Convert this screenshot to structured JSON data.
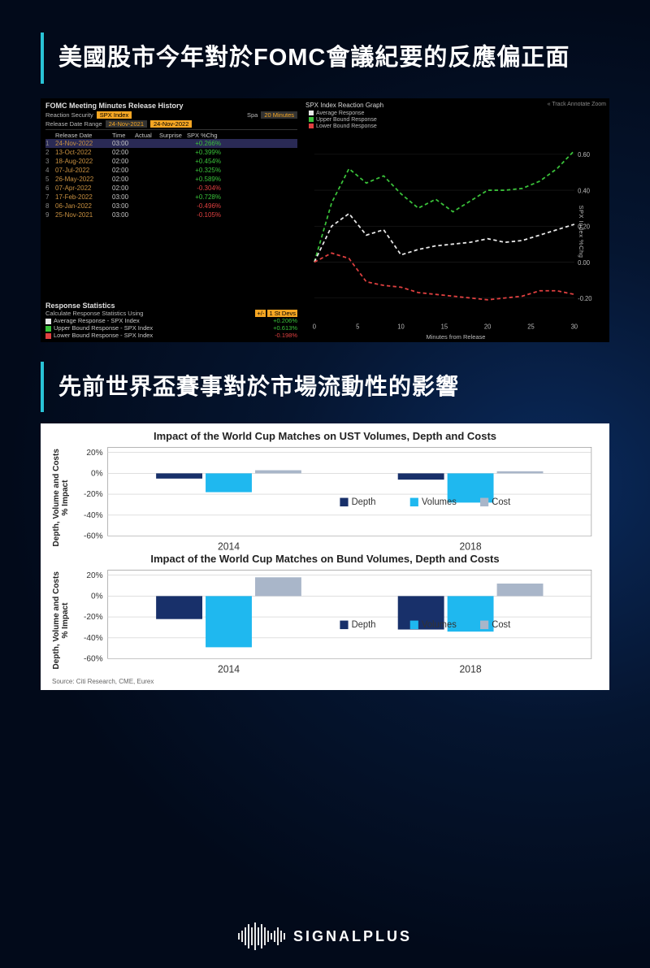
{
  "heading1": "美國股市今年對於FOMC會議紀要的反應偏正面",
  "heading2": "先前世界盃賽事對於市場流動性的影響",
  "brand": "SIGNALPLUS",
  "terminal": {
    "title": "FOMC Meeting Minutes Release History",
    "reaction_security_label": "Reaction Security",
    "reaction_security_value": "SPX Index",
    "spap_label": "Spa",
    "spap_value": "20 Minutes",
    "release_range_label": "Release Date Range",
    "range_from": "24-Nov-2021",
    "range_to": "24-Nov-2022",
    "head": [
      "",
      "Release Date",
      "Time",
      "Actual",
      "Surprise",
      "SPX %Chg"
    ],
    "rows": [
      {
        "n": "1",
        "date": "24-Nov-2022",
        "time": "03:00",
        "chg": "+0.266%",
        "dir": "pos",
        "hl": true
      },
      {
        "n": "2",
        "date": "13-Oct-2022",
        "time": "02:00",
        "chg": "+0.399%",
        "dir": "pos"
      },
      {
        "n": "3",
        "date": "18-Aug-2022",
        "time": "02:00",
        "chg": "+0.454%",
        "dir": "pos"
      },
      {
        "n": "4",
        "date": "07-Jul-2022",
        "time": "02:00",
        "chg": "+0.325%",
        "dir": "pos"
      },
      {
        "n": "5",
        "date": "26-May-2022",
        "time": "02:00",
        "chg": "+0.589%",
        "dir": "pos"
      },
      {
        "n": "6",
        "date": "07-Apr-2022",
        "time": "02:00",
        "chg": "-0.304%",
        "dir": "neg"
      },
      {
        "n": "7",
        "date": "17-Feb-2022",
        "time": "03:00",
        "chg": "+0.728%",
        "dir": "pos"
      },
      {
        "n": "8",
        "date": "06-Jan-2022",
        "time": "03:00",
        "chg": "-0.496%",
        "dir": "neg"
      },
      {
        "n": "9",
        "date": "25-Nov-2021",
        "time": "03:00",
        "chg": "-0.105%",
        "dir": "neg"
      }
    ],
    "stats_title": "Response Statistics",
    "stats_sub_label": "Calculate Response Statistics Using",
    "stats_sub_btn": "+/-",
    "stats_sub_val": "1 St Devs",
    "stats_rows": [
      {
        "color": "#e8e8e8",
        "label": "Average Response - SPX Index",
        "val": "+0.206%",
        "dir": "pos"
      },
      {
        "color": "#3ac23a",
        "label": "Upper Bound Response - SPX Index",
        "val": "+0.613%",
        "dir": "pos"
      },
      {
        "color": "#e04040",
        "label": "Lower Bound Response - SPX Index",
        "val": "-0.198%",
        "dir": "neg"
      }
    ],
    "graph": {
      "title": "SPX Index Reaction Graph",
      "tools": "« Track   Annotate   Zoom",
      "legend": [
        {
          "color": "#e8e8e8",
          "label": "Average Response"
        },
        {
          "color": "#3ac23a",
          "label": "Upper Bound Response"
        },
        {
          "color": "#e04040",
          "label": "Lower Bound Response"
        }
      ],
      "x_ticks": [
        0,
        5,
        10,
        15,
        20,
        25,
        30
      ],
      "y_ticks": [
        -0.2,
        0.0,
        0.2,
        0.4,
        0.6
      ],
      "y_min": -0.3,
      "y_max": 0.7,
      "avg": [
        [
          0,
          0.0
        ],
        [
          2,
          0.2
        ],
        [
          4,
          0.27
        ],
        [
          6,
          0.15
        ],
        [
          8,
          0.18
        ],
        [
          10,
          0.04
        ],
        [
          12,
          0.07
        ],
        [
          14,
          0.09
        ],
        [
          16,
          0.1
        ],
        [
          18,
          0.11
        ],
        [
          20,
          0.13
        ],
        [
          22,
          0.11
        ],
        [
          24,
          0.12
        ],
        [
          26,
          0.15
        ],
        [
          28,
          0.18
        ],
        [
          30,
          0.21
        ]
      ],
      "upper": [
        [
          0,
          0.0
        ],
        [
          2,
          0.33
        ],
        [
          4,
          0.52
        ],
        [
          6,
          0.44
        ],
        [
          8,
          0.48
        ],
        [
          10,
          0.38
        ],
        [
          12,
          0.3
        ],
        [
          14,
          0.35
        ],
        [
          16,
          0.28
        ],
        [
          18,
          0.34
        ],
        [
          20,
          0.4
        ],
        [
          22,
          0.4
        ],
        [
          24,
          0.41
        ],
        [
          26,
          0.45
        ],
        [
          28,
          0.52
        ],
        [
          30,
          0.62
        ]
      ],
      "lower": [
        [
          0,
          0.0
        ],
        [
          2,
          0.05
        ],
        [
          4,
          0.02
        ],
        [
          6,
          -0.11
        ],
        [
          8,
          -0.13
        ],
        [
          10,
          -0.14
        ],
        [
          12,
          -0.17
        ],
        [
          14,
          -0.18
        ],
        [
          16,
          -0.19
        ],
        [
          18,
          -0.2
        ],
        [
          20,
          -0.21
        ],
        [
          22,
          -0.2
        ],
        [
          24,
          -0.19
        ],
        [
          26,
          -0.16
        ],
        [
          28,
          -0.16
        ],
        [
          30,
          -0.18
        ]
      ],
      "xlabel": "Minutes from Release",
      "ylabel": "SPX Index %Chg"
    }
  },
  "bars": {
    "ylabel": "Depth, Volume and Costs % Impact",
    "y_ticks": [
      20,
      0,
      -20,
      -40,
      -60
    ],
    "y_min": -60,
    "y_max": 25,
    "categories": [
      "2014",
      "2018"
    ],
    "legend": [
      {
        "color": "#18306a",
        "label": "Depth"
      },
      {
        "color": "#1fb8ef",
        "label": "Volumes"
      },
      {
        "color": "#a9b6c9",
        "label": "Cost"
      }
    ],
    "charts": [
      {
        "title": "Impact of the World Cup Matches on UST Volumes, Depth and Costs",
        "data": {
          "2014": {
            "Depth": -5,
            "Volumes": -18,
            "Cost": 3
          },
          "2018": {
            "Depth": -6,
            "Volumes": -28,
            "Cost": 2
          }
        }
      },
      {
        "title": "Impact of the World Cup Matches on Bund Volumes, Depth and Costs",
        "data": {
          "2014": {
            "Depth": -22,
            "Volumes": -49,
            "Cost": 18
          },
          "2018": {
            "Depth": -32,
            "Volumes": -34,
            "Cost": 12
          }
        }
      }
    ],
    "source": "Source: Citi Research, CME, Eurex"
  },
  "logo_bars": [
    8,
    14,
    22,
    30,
    22,
    34,
    22,
    30,
    22,
    14,
    8,
    14,
    22,
    14,
    8
  ]
}
